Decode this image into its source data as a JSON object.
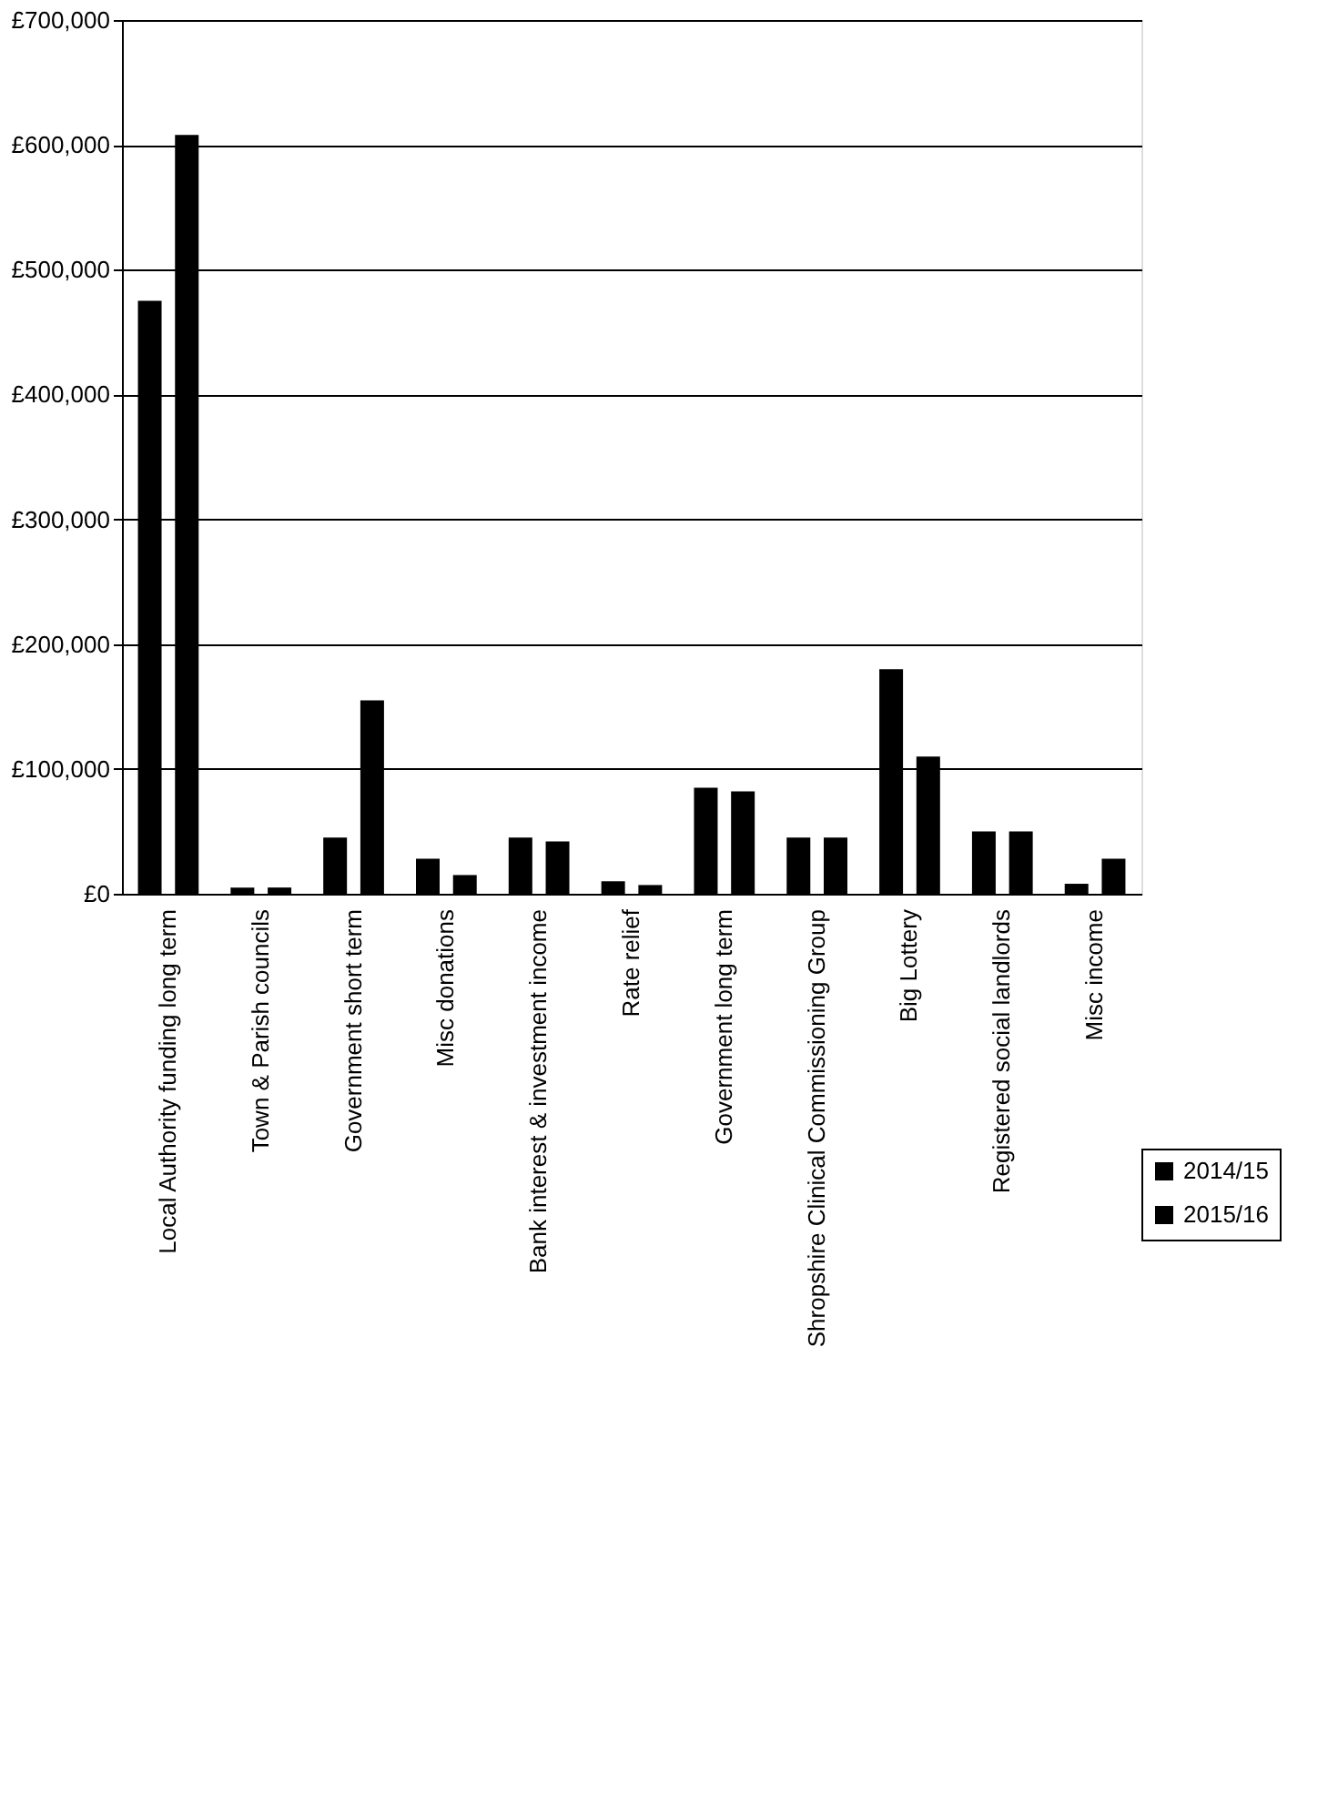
{
  "chart_data": {
    "type": "bar",
    "categories": [
      "Local Authority funding long term",
      "Town & Parish councils",
      "Government short term",
      "Misc donations",
      "Bank interest & investment income",
      "Rate relief",
      "Government long term",
      "Shropshire Clinical Commissioning Group",
      "Big Lottery",
      "Registered social landlords",
      "Misc income"
    ],
    "series": [
      {
        "name": "2014/15",
        "color": "#000000",
        "values": [
          475000,
          5000,
          45000,
          28000,
          45000,
          10000,
          85000,
          45000,
          180000,
          50000,
          8000
        ]
      },
      {
        "name": "2015/16",
        "color": "#000000",
        "values": [
          608000,
          5000,
          155000,
          15000,
          42000,
          7000,
          82000,
          45000,
          110000,
          50000,
          28000
        ]
      }
    ],
    "ylim": [
      0,
      700000
    ],
    "yticks": [
      {
        "value": 0,
        "label": "£0"
      },
      {
        "value": 100000,
        "label": "£100,000"
      },
      {
        "value": 200000,
        "label": "£200,000"
      },
      {
        "value": 300000,
        "label": "£300,000"
      },
      {
        "value": 400000,
        "label": "£400,000"
      },
      {
        "value": 500000,
        "label": "£500,000"
      },
      {
        "value": 600000,
        "label": "£600,000"
      },
      {
        "value": 700000,
        "label": "£700,000"
      }
    ],
    "grid": "y",
    "legend": "bottom right"
  }
}
